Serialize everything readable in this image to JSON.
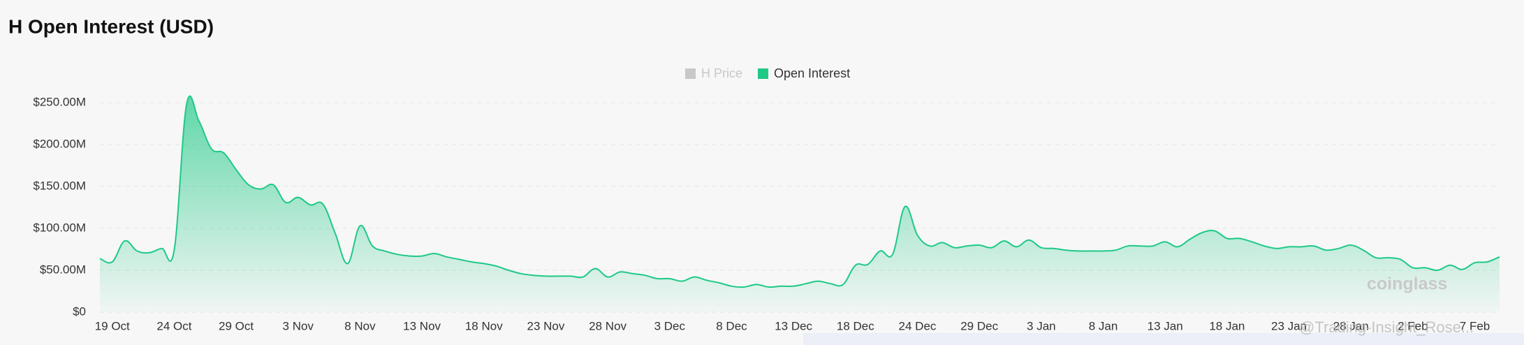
{
  "chart_data": {
    "type": "area",
    "title": "H Open Interest (USD)",
    "legend": [
      "H Price",
      "Open Interest"
    ],
    "legend_colors": [
      "#c8c8c8",
      "#1ec986"
    ],
    "watermark": "coinglass",
    "credit": "@Trading-Insight_Rose...",
    "categories": [
      null,
      "19 Oct",
      null,
      null,
      null,
      null,
      "24 Oct",
      null,
      null,
      null,
      null,
      "29 Oct",
      null,
      null,
      null,
      null,
      "3 Nov",
      null,
      null,
      null,
      null,
      "8 Nov",
      null,
      null,
      null,
      null,
      "13 Nov",
      null,
      null,
      null,
      null,
      "18 Nov",
      null,
      null,
      null,
      null,
      "23 Nov",
      null,
      null,
      null,
      null,
      "28 Nov",
      null,
      null,
      null,
      null,
      "3 Dec",
      null,
      null,
      null,
      null,
      "8 Dec",
      null,
      null,
      null,
      null,
      "13 Dec",
      null,
      null,
      null,
      null,
      "18 Dec",
      null,
      null,
      null,
      null,
      "24 Dec",
      null,
      null,
      null,
      null,
      "29 Dec",
      null,
      null,
      null,
      null,
      "3 Jan",
      null,
      null,
      null,
      null,
      "8 Jan",
      null,
      null,
      null,
      null,
      "13 Jan",
      null,
      null,
      null,
      null,
      "18 Jan",
      null,
      null,
      null,
      null,
      "23 Jan",
      null,
      null,
      null,
      null,
      "28 Jan",
      null,
      null,
      null,
      null,
      "2 Feb",
      null,
      null,
      null,
      null,
      "7 Feb",
      null,
      null
    ],
    "series": [
      {
        "name": "Open Interest",
        "color": "#1ec986",
        "values": [
          64000000,
          60000000,
          85000000,
          73000000,
          71000000,
          76000000,
          74000000,
          248000000,
          228000000,
          195000000,
          190000000,
          170000000,
          152000000,
          147000000,
          152000000,
          131000000,
          137000000,
          128000000,
          129000000,
          94000000,
          58000000,
          103000000,
          79000000,
          73000000,
          69000000,
          67000000,
          67000000,
          70000000,
          66000000,
          63000000,
          60000000,
          58000000,
          55000000,
          50000000,
          46000000,
          44000000,
          43000000,
          43000000,
          43000000,
          42000000,
          52000000,
          42000000,
          48000000,
          46000000,
          44000000,
          40000000,
          40000000,
          37000000,
          42000000,
          38000000,
          35000000,
          31000000,
          30000000,
          33000000,
          30000000,
          31000000,
          31000000,
          34000000,
          37000000,
          34000000,
          33000000,
          56000000,
          57000000,
          73000000,
          69000000,
          126000000,
          92000000,
          79000000,
          83000000,
          77000000,
          79000000,
          80000000,
          77000000,
          85000000,
          78000000,
          86000000,
          77000000,
          76000000,
          74000000,
          73000000,
          73000000,
          73000000,
          74000000,
          79000000,
          79000000,
          79000000,
          84000000,
          78000000,
          87000000,
          95000000,
          97000000,
          88000000,
          88000000,
          84000000,
          79000000,
          76000000,
          78000000,
          78000000,
          79000000,
          74000000,
          76000000,
          80000000,
          74000000,
          65000000,
          65000000,
          63000000,
          53000000,
          53000000,
          50000000,
          56000000,
          51000000,
          59000000,
          60000000,
          66000000
        ]
      }
    ],
    "ylim": [
      0,
      250000000
    ],
    "yticks": [
      {
        "value": 0,
        "label": "$0"
      },
      {
        "value": 50000000,
        "label": "$50.00M"
      },
      {
        "value": 100000000,
        "label": "$100.00M"
      },
      {
        "value": 150000000,
        "label": "$150.00M"
      },
      {
        "value": 200000000,
        "label": "$200.00M"
      },
      {
        "value": 250000000,
        "label": "$250.00M"
      }
    ],
    "grid": true
  }
}
